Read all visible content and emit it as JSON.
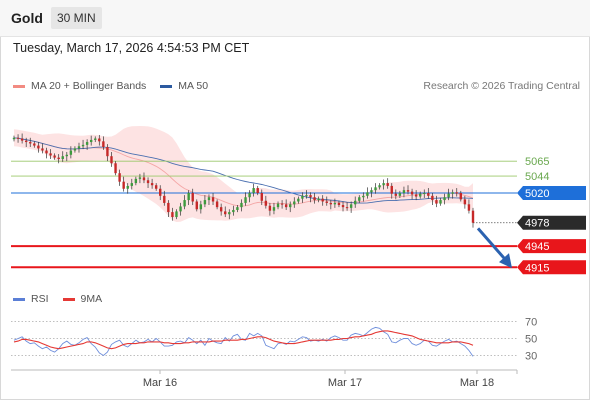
{
  "header": {
    "instrument": "Gold",
    "timeframe": "30 MIN"
  },
  "datetime": "Tuesday, March 17, 2026 4:54:53 PM CET",
  "legend": {
    "items": [
      {
        "label": "MA 20 + Bollinger Bands",
        "color": "#f28b82"
      },
      {
        "label": "MA 50",
        "color": "#2c5aa0"
      }
    ],
    "credit": "Research © 2026 Trading Central"
  },
  "rsi_legend": {
    "items": [
      {
        "label": "RSI",
        "color": "#5b7fd6"
      },
      {
        "label": "9MA",
        "color": "#e53935"
      }
    ]
  },
  "chart_data": {
    "type": "candlestick",
    "ylim": [
      4890,
      5150
    ],
    "x_ticks": [
      "Mar 16",
      "Mar 17",
      "Mar 18"
    ],
    "levels": [
      {
        "value": 5065,
        "label": "5065",
        "style": "resistance",
        "color": "#9bc86a"
      },
      {
        "value": 5044,
        "label": "5044",
        "style": "resistance",
        "color": "#9bc86a"
      },
      {
        "value": 5020,
        "label": "5020",
        "style": "pivot",
        "color": "#1e6fd9"
      },
      {
        "value": 4978,
        "label": "4978",
        "style": "last",
        "color": "#2a2a2a"
      },
      {
        "value": 4945,
        "label": "4945",
        "style": "support",
        "color": "#e8161b"
      },
      {
        "value": 4915,
        "label": "4915",
        "style": "support",
        "color": "#e8161b"
      }
    ],
    "close": [
      5098,
      5097,
      5094,
      5092,
      5090,
      5087,
      5083,
      5080,
      5076,
      5073,
      5070,
      5068,
      5072,
      5074,
      5080,
      5083,
      5086,
      5088,
      5092,
      5095,
      5097,
      5093,
      5085,
      5072,
      5062,
      5048,
      5036,
      5026,
      5030,
      5034,
      5040,
      5042,
      5038,
      5034,
      5031,
      5026,
      5016,
      5006,
      4993,
      4986,
      4994,
      5001,
      5010,
      5020,
      5008,
      4997,
      5004,
      5010,
      5014,
      5008,
      5000,
      4994,
      4990,
      4993,
      4996,
      5000,
      5006,
      5014,
      5020,
      5027,
      5020,
      5009,
      5002,
      4995,
      5000,
      5005,
      5004,
      5000,
      5004,
      5008,
      5012,
      5016,
      5017,
      5014,
      5010,
      5012,
      5008,
      5006,
      5004,
      5006,
      5003,
      5000,
      4999,
      5004,
      5009,
      5014,
      5016,
      5021,
      5024,
      5028,
      5031,
      5034,
      5030,
      5019,
      5016,
      5020,
      5024,
      5022,
      5018,
      5015,
      5019,
      5020,
      5016,
      5010,
      5005,
      5010,
      5014,
      5019,
      5021,
      5020,
      5011,
      5004,
      4995,
      4978
    ],
    "rsi": {
      "ylim": [
        20,
        80
      ],
      "levels": [
        70,
        50,
        30
      ],
      "rsi_values": [
        48,
        50,
        52,
        47,
        44,
        45,
        41,
        38,
        40,
        36,
        34,
        38,
        44,
        47,
        43,
        42,
        45,
        49,
        51,
        44,
        40,
        33,
        30,
        34,
        43,
        46,
        48,
        42,
        40,
        44,
        48,
        45,
        46,
        49,
        46,
        50,
        46,
        41,
        41,
        42,
        46,
        47,
        45,
        51,
        48,
        44,
        48,
        42,
        50,
        47,
        45,
        44,
        51,
        47,
        53,
        55,
        49,
        48,
        56,
        53,
        56,
        53,
        42,
        40,
        38,
        44,
        45,
        43,
        47,
        46,
        49,
        52,
        51,
        47,
        48,
        47,
        49,
        47,
        51,
        53,
        51,
        48,
        48,
        54,
        56,
        55,
        53,
        57,
        61,
        63,
        62,
        58,
        55,
        46,
        45,
        48,
        50,
        50,
        44,
        42,
        44,
        48,
        47,
        42,
        41,
        44,
        47,
        49,
        46,
        47,
        44,
        41,
        36,
        29
      ],
      "ma9_values": [
        46,
        47,
        49,
        49,
        48,
        47,
        46,
        44,
        42,
        40,
        39,
        38,
        39,
        40,
        41,
        42,
        43,
        44,
        46,
        46,
        45,
        43,
        41,
        39,
        38,
        39,
        41,
        43,
        44,
        44,
        44,
        45,
        45,
        46,
        46,
        46,
        46,
        45,
        45,
        44,
        44,
        44,
        45,
        45,
        46,
        46,
        46,
        46,
        46,
        47,
        47,
        47,
        48,
        48,
        48,
        48,
        49,
        49,
        50,
        51,
        52,
        52,
        51,
        49,
        47,
        46,
        45,
        44,
        44,
        44,
        45,
        46,
        47,
        48,
        48,
        48,
        48,
        48,
        48,
        49,
        49,
        50,
        50,
        51,
        52,
        52,
        53,
        54,
        55,
        57,
        58,
        59,
        59,
        58,
        57,
        56,
        55,
        54,
        53,
        51,
        49,
        48,
        47,
        46,
        45,
        45,
        45,
        45,
        46,
        46,
        46,
        45,
        44,
        42
      ]
    }
  },
  "annotation": {
    "type": "forecast-arrow",
    "from_value": 4970,
    "to_value": 4918
  }
}
